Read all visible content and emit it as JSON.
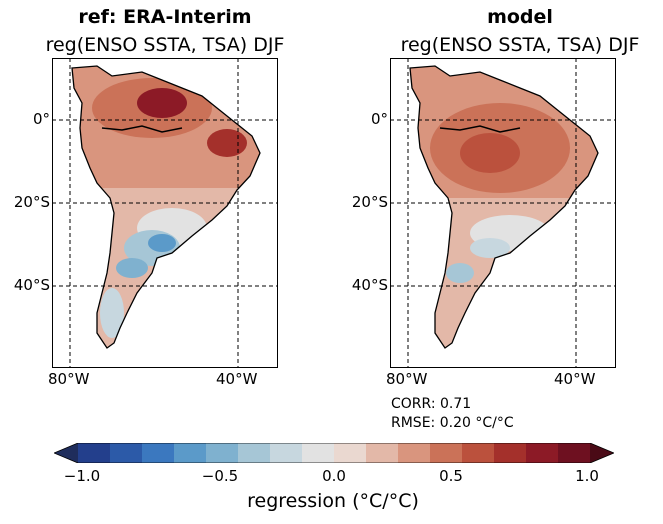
{
  "panels": [
    {
      "title": "ref: ERA-Interim",
      "subtitle": "reg(ENSO SSTA, TSA) DJF",
      "lat_labels": [
        "0°",
        "20°S",
        "40°S"
      ],
      "lon_labels": [
        "80°W",
        "40°W"
      ]
    },
    {
      "title": "model",
      "subtitle": "reg(ENSO SSTA, TSA) DJF",
      "lat_labels": [
        "0°",
        "20°S",
        "40°S"
      ],
      "lon_labels": [
        "80°W",
        "40°W"
      ]
    }
  ],
  "stats": {
    "corr": "CORR: 0.71",
    "rmse": "RMSE: 0.20 °C/°C"
  },
  "colorbar": {
    "ticks": [
      "−1.0",
      "−0.5",
      "0.0",
      "0.5",
      "1.0"
    ],
    "label": "regression (°C/°C)",
    "colors": [
      "#1f2d5c",
      "#233f8c",
      "#2c5aa8",
      "#3b78bf",
      "#5b9ac9",
      "#7fb1cf",
      "#a6c6d6",
      "#c7d7df",
      "#e2e2e2",
      "#ead8d0",
      "#e3b8a8",
      "#d9957e",
      "#cb7258",
      "#bb513d",
      "#a4302b",
      "#8c1a26",
      "#6e1020",
      "#4a0a16"
    ],
    "vmin": -1.0,
    "vmax": 1.0
  },
  "map_fill": {
    "land_default": "#d9957e",
    "warm_core": "#8c1a26",
    "warm_mid": "#cb7258",
    "cool": "#7fb1cf",
    "neutral": "#e2e2e2"
  }
}
